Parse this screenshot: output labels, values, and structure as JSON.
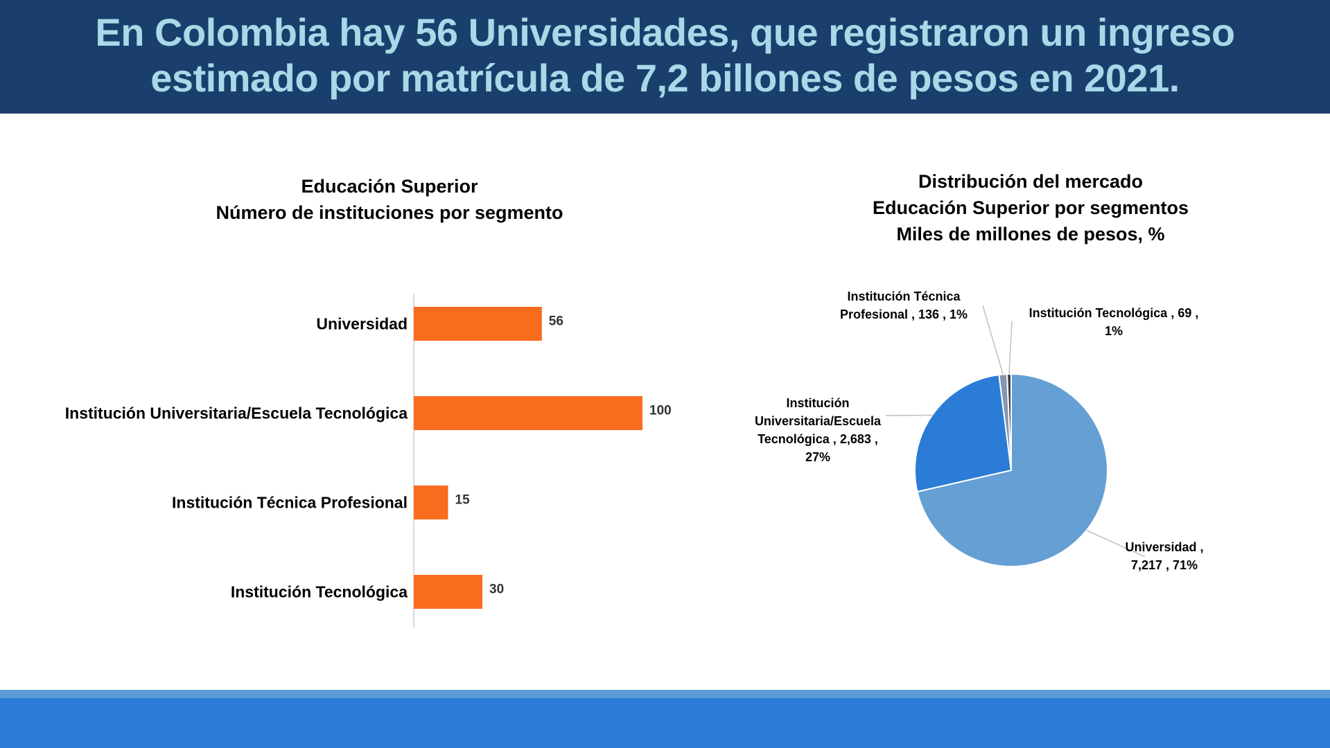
{
  "header": {
    "title_line1": "En Colombia hay 56 Universidades, que registraron un ingreso",
    "title_line2": "estimado por matrícula de 7,2 billones de pesos en 2021."
  },
  "colors": {
    "header_bg": "#1a3f6c",
    "header_text": "#a9d8e8",
    "bar": "#f96c1e",
    "footer": "#2b7cd6"
  },
  "chart_data": [
    {
      "type": "bar",
      "orientation": "horizontal",
      "title_line1": "Educación Superior",
      "title_line2": "Número de instituciones por segmento",
      "categories": [
        "Universidad",
        "Institución Universitaria/Escuela Tecnológica",
        "Institución Técnica Profesional",
        "Institución Tecnológica"
      ],
      "values": [
        56,
        100,
        15,
        30
      ],
      "value_labels": [
        "56",
        "100",
        "15",
        "30"
      ],
      "xlim": [
        0,
        100
      ],
      "color": "#f96c1e"
    },
    {
      "type": "pie",
      "title_line1": "Distribución del mercado",
      "title_line2": "Educación Superior por segmentos",
      "title_line3": "Miles de millones de pesos, %",
      "slices": [
        {
          "name": "Universidad",
          "value": 7217,
          "percent": 71,
          "color": "#659fd3",
          "label_lines": [
            "Universidad ,",
            "7,217 , 71%"
          ]
        },
        {
          "name": "Institución Universitaria/Escuela Tecnológica",
          "value": 2683,
          "percent": 27,
          "color": "#2b7cd6",
          "label_lines": [
            "Institución",
            "Universitaria/Escuela",
            "Tecnológica ,  2,683 ,",
            "27%"
          ]
        },
        {
          "name": "Institución Técnica Profesional",
          "value": 136,
          "percent": 1,
          "color": "#8497b0",
          "label_lines": [
            "Institución Técnica",
            "Profesional ,  136 , 1%"
          ]
        },
        {
          "name": "Institución Tecnológica",
          "value": 69,
          "percent": 1,
          "color": "#3a3f48",
          "label_lines": [
            "Institución Tecnológica ,  69 ,",
            "1%"
          ]
        }
      ]
    }
  ]
}
